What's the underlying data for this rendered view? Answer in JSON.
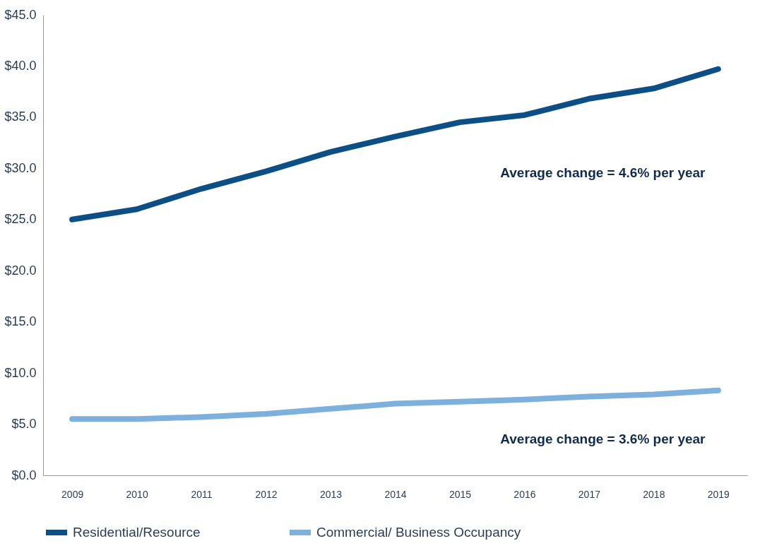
{
  "chart_data": {
    "type": "line",
    "categories": [
      "2009",
      "2010",
      "2011",
      "2012",
      "2013",
      "2014",
      "2015",
      "2016",
      "2017",
      "2018",
      "2019"
    ],
    "series": [
      {
        "name": "Residential/Resource",
        "color": "#0b4f86",
        "values": [
          25.0,
          26.0,
          28.0,
          29.7,
          31.6,
          33.1,
          34.5,
          35.2,
          36.8,
          37.8,
          39.7
        ]
      },
      {
        "name": "Commercial/ Business Occupancy",
        "color": "#7eb0de",
        "values": [
          5.5,
          5.5,
          5.7,
          6.0,
          6.5,
          7.0,
          7.2,
          7.4,
          7.7,
          7.9,
          8.3
        ]
      }
    ],
    "ylim": [
      0,
      45
    ],
    "yticks": [
      {
        "value": 0,
        "label": "$0.0"
      },
      {
        "value": 5,
        "label": "$5.0"
      },
      {
        "value": 10,
        "label": "$10.0"
      },
      {
        "value": 15,
        "label": "$15.0"
      },
      {
        "value": 20,
        "label": "$20.0"
      },
      {
        "value": 25,
        "label": "$25.0"
      },
      {
        "value": 30,
        "label": "$30.0"
      },
      {
        "value": 35,
        "label": "$35.0"
      },
      {
        "value": 40,
        "label": "$40.0"
      },
      {
        "value": 45,
        "label": "$45.0"
      }
    ],
    "annotations": [
      "Average change = 4.6% per year",
      "Average change = 3.6% per year"
    ],
    "grid": false,
    "legend": "bottom",
    "marker": "none",
    "line_style": "solid"
  }
}
